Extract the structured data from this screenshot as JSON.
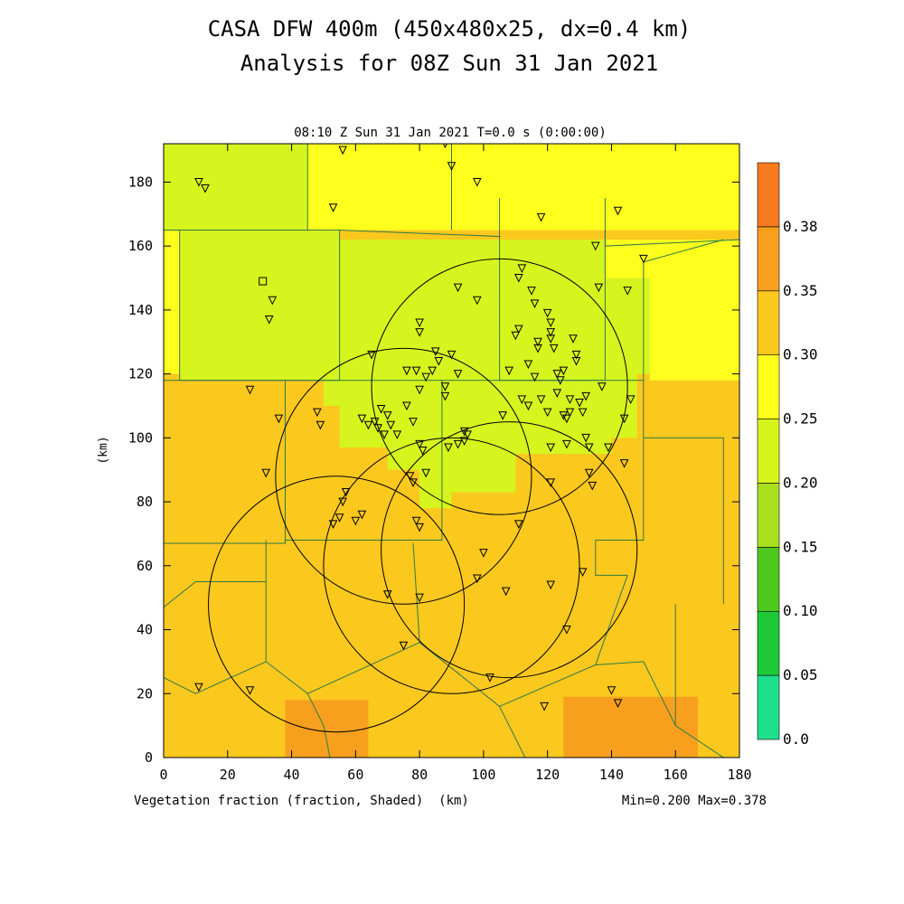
{
  "chart_data": {
    "type": "heatmap",
    "title": "CASA DFW 400m (450x480x25, dx=0.4 km)",
    "subtitle": "Analysis for 08Z Sun 31 Jan 2021",
    "time_label": "08:10 Z Sun 31 Jan 2021    T=0.0 s (0:00:00)",
    "variable_label": "Vegetation fraction (fraction, Shaded)  (km)",
    "minmax_label": "Min=0.200 Max=0.378",
    "xlabel": "(km)",
    "ylabel": "(km)",
    "xlim": [
      0,
      180
    ],
    "ylim": [
      0,
      192
    ],
    "x_ticks": [
      0,
      20,
      40,
      60,
      80,
      100,
      120,
      140,
      160,
      180
    ],
    "y_ticks": [
      0,
      20,
      40,
      60,
      80,
      100,
      120,
      140,
      160,
      180
    ],
    "colorbar": {
      "levels": [
        "0.0",
        "0.05",
        "0.10",
        "0.15",
        "0.20",
        "0.25",
        "0.30",
        "0.35",
        "0.38"
      ],
      "colors": [
        "#1ee08c",
        "#1ec837",
        "#4ec81e",
        "#a8e01e",
        "#d6f51e",
        "#ffff1e",
        "#fbc81e",
        "#f8a01e",
        "#f87a1e"
      ]
    },
    "fields": {
      "base_value": 0.3,
      "regions": [
        {
          "value": 0.26,
          "poly": [
            [
              0,
              192
            ],
            [
              180,
              192
            ],
            [
              180,
              165
            ],
            [
              0,
              165
            ]
          ]
        },
        {
          "value": 0.24,
          "poly": [
            [
              0,
              192
            ],
            [
              45,
              192
            ],
            [
              45,
              165
            ],
            [
              0,
              165
            ]
          ]
        },
        {
          "value": 0.27,
          "poly": [
            [
              0,
              165
            ],
            [
              5,
              165
            ],
            [
              5,
              120
            ],
            [
              0,
              120
            ]
          ]
        },
        {
          "value": 0.24,
          "poly": [
            [
              5,
              165
            ],
            [
              55,
              165
            ],
            [
              55,
              118
            ],
            [
              5,
              118
            ]
          ]
        },
        {
          "value": 0.24,
          "poly": [
            [
              55,
              162
            ],
            [
              138,
              162
            ],
            [
              138,
              150
            ],
            [
              152,
              150
            ],
            [
              152,
              120
            ],
            [
              148,
              120
            ],
            [
              148,
              100
            ],
            [
              140,
              100
            ],
            [
              140,
              95
            ],
            [
              110,
              95
            ],
            [
              110,
              83
            ],
            [
              90,
              83
            ],
            [
              90,
              78
            ],
            [
              80,
              78
            ],
            [
              80,
              90
            ],
            [
              70,
              90
            ],
            [
              70,
              97
            ],
            [
              55,
              97
            ],
            [
              55,
              110
            ],
            [
              50,
              110
            ],
            [
              50,
              118
            ],
            [
              55,
              118
            ]
          ]
        },
        {
          "value": 0.27,
          "poly": [
            [
              138,
              162
            ],
            [
              180,
              162
            ],
            [
              180,
              118
            ],
            [
              152,
              118
            ],
            [
              152,
              150
            ],
            [
              138,
              150
            ]
          ]
        },
        {
          "value": 0.31,
          "poly": [
            [
              0,
              68
            ],
            [
              38,
              68
            ],
            [
              38,
              70
            ],
            [
              45,
              70
            ],
            [
              45,
              25
            ],
            [
              30,
              25
            ],
            [
              30,
              15
            ],
            [
              0,
              15
            ]
          ]
        },
        {
          "value": 0.32,
          "poly": [
            [
              30,
              68
            ],
            [
              78,
              68
            ],
            [
              78,
              36
            ],
            [
              90,
              36
            ],
            [
              90,
              20
            ],
            [
              45,
              20
            ],
            [
              45,
              30
            ],
            [
              30,
              30
            ]
          ]
        },
        {
          "value": 0.31,
          "poly": [
            [
              78,
              68
            ],
            [
              135,
              68
            ],
            [
              135,
              30
            ],
            [
              100,
              30
            ],
            [
              100,
              50
            ],
            [
              90,
              50
            ],
            [
              90,
              36
            ],
            [
              78,
              36
            ]
          ]
        },
        {
          "value": 0.32,
          "poly": [
            [
              150,
              100
            ],
            [
              180,
              100
            ],
            [
              180,
              48
            ],
            [
              160,
              48
            ],
            [
              160,
              55
            ],
            [
              150,
              55
            ]
          ]
        },
        {
          "value": 0.36,
          "poly": [
            [
              38,
              0
            ],
            [
              64,
              0
            ],
            [
              64,
              18
            ],
            [
              38,
              18
            ]
          ]
        },
        {
          "value": 0.36,
          "poly": [
            [
              125,
              0
            ],
            [
              167,
              0
            ],
            [
              167,
              19
            ],
            [
              125,
              19
            ]
          ]
        },
        {
          "value": 0.32,
          "poly": [
            [
              0,
              15
            ],
            [
              30,
              15
            ],
            [
              30,
              0
            ],
            [
              0,
              0
            ]
          ]
        }
      ]
    },
    "county_lines": [
      [
        [
          0,
          165
        ],
        [
          45,
          165
        ],
        [
          45,
          192
        ]
      ],
      [
        [
          45,
          165
        ],
        [
          55,
          165
        ],
        [
          55,
          118
        ],
        [
          5,
          118
        ],
        [
          5,
          165
        ]
      ],
      [
        [
          55,
          165
        ],
        [
          105,
          163
        ],
        [
          105,
          175
        ]
      ],
      [
        [
          90,
          192
        ],
        [
          90,
          165
        ]
      ],
      [
        [
          138,
          175
        ],
        [
          138,
          160
        ],
        [
          180,
          162
        ]
      ],
      [
        [
          105,
          163
        ],
        [
          105,
          118
        ],
        [
          138,
          118
        ],
        [
          138,
          165
        ]
      ],
      [
        [
          0,
          118
        ],
        [
          38,
          118
        ],
        [
          38,
          67
        ],
        [
          0,
          67
        ]
      ],
      [
        [
          38,
          118
        ],
        [
          87,
          118
        ],
        [
          87,
          68
        ],
        [
          38,
          68
        ]
      ],
      [
        [
          87,
          118
        ],
        [
          150,
          118
        ],
        [
          150,
          68
        ],
        [
          135,
          68
        ],
        [
          135,
          57
        ],
        [
          145,
          57
        ]
      ],
      [
        [
          150,
          100
        ],
        [
          175,
          100
        ],
        [
          175,
          48
        ]
      ],
      [
        [
          150,
          118
        ],
        [
          150,
          155
        ],
        [
          175,
          162
        ]
      ],
      [
        [
          0,
          47
        ],
        [
          10,
          55
        ],
        [
          32,
          55
        ],
        [
          32,
          68
        ]
      ],
      [
        [
          32,
          55
        ],
        [
          32,
          30
        ],
        [
          10,
          20
        ]
      ],
      [
        [
          32,
          30
        ],
        [
          45,
          20
        ],
        [
          80,
          36
        ],
        [
          78,
          67
        ]
      ],
      [
        [
          80,
          36
        ],
        [
          105,
          16
        ],
        [
          135,
          29
        ],
        [
          145,
          57
        ]
      ],
      [
        [
          0,
          0
        ],
        [
          0,
          25
        ],
        [
          10,
          20
        ]
      ],
      [
        [
          45,
          20
        ],
        [
          50,
          10
        ],
        [
          52,
          0
        ]
      ],
      [
        [
          105,
          16
        ],
        [
          113,
          0
        ]
      ],
      [
        [
          135,
          29
        ],
        [
          150,
          30
        ],
        [
          160,
          10
        ],
        [
          175,
          0
        ]
      ],
      [
        [
          160,
          48
        ],
        [
          160,
          10
        ]
      ],
      [
        [
          38,
          68
        ],
        [
          87,
          68
        ]
      ]
    ],
    "range_rings": [
      {
        "cx": 75,
        "cy": 88,
        "r": 40
      },
      {
        "cx": 54,
        "cy": 48,
        "r": 40
      },
      {
        "cx": 90,
        "cy": 60,
        "r": 40
      },
      {
        "cx": 105,
        "cy": 116,
        "r": 40
      },
      {
        "cx": 108,
        "cy": 65,
        "r": 40
      }
    ],
    "stations_triangle": [
      [
        11,
        180
      ],
      [
        13,
        178
      ],
      [
        56,
        190
      ],
      [
        53,
        172
      ],
      [
        88,
        192
      ],
      [
        90,
        185
      ],
      [
        98,
        180
      ],
      [
        118,
        169
      ],
      [
        142,
        171
      ],
      [
        150,
        156
      ],
      [
        34,
        143
      ],
      [
        33,
        137
      ],
      [
        27,
        115
      ],
      [
        36,
        106
      ],
      [
        32,
        89
      ],
      [
        48,
        108
      ],
      [
        49,
        104
      ],
      [
        62,
        106
      ],
      [
        64,
        104
      ],
      [
        66,
        105
      ],
      [
        67,
        103
      ],
      [
        68,
        109
      ],
      [
        70,
        107
      ],
      [
        71,
        104
      ],
      [
        73,
        101
      ],
      [
        69,
        101
      ],
      [
        65,
        126
      ],
      [
        76,
        121
      ],
      [
        79,
        121
      ],
      [
        80,
        115
      ],
      [
        82,
        119
      ],
      [
        84,
        121
      ],
      [
        85,
        127
      ],
      [
        86,
        124
      ],
      [
        88,
        116
      ],
      [
        88,
        113
      ],
      [
        90,
        126
      ],
      [
        92,
        120
      ],
      [
        92,
        147
      ],
      [
        98,
        143
      ],
      [
        80,
        136
      ],
      [
        80,
        133
      ],
      [
        76,
        110
      ],
      [
        78,
        105
      ],
      [
        80,
        98
      ],
      [
        81,
        96
      ],
      [
        82,
        89
      ],
      [
        78,
        86
      ],
      [
        77,
        88
      ],
      [
        89,
        97
      ],
      [
        92,
        98
      ],
      [
        95,
        101
      ],
      [
        94,
        102
      ],
      [
        94,
        99
      ],
      [
        106,
        107
      ],
      [
        108,
        121
      ],
      [
        110,
        132
      ],
      [
        111,
        134
      ],
      [
        111,
        150
      ],
      [
        112,
        153
      ],
      [
        114,
        123
      ],
      [
        115,
        146
      ],
      [
        116,
        142
      ],
      [
        117,
        130
      ],
      [
        117,
        128
      ],
      [
        120,
        139
      ],
      [
        121,
        136
      ],
      [
        121,
        133
      ],
      [
        121,
        131
      ],
      [
        122,
        128
      ],
      [
        123,
        120
      ],
      [
        124,
        118
      ],
      [
        125,
        121
      ],
      [
        123,
        114
      ],
      [
        125,
        107
      ],
      [
        126,
        106
      ],
      [
        127,
        108
      ],
      [
        127,
        112
      ],
      [
        128,
        131
      ],
      [
        129,
        124
      ],
      [
        129,
        126
      ],
      [
        130,
        111
      ],
      [
        131,
        108
      ],
      [
        132,
        113
      ],
      [
        132,
        100
      ],
      [
        133,
        97
      ],
      [
        133,
        89
      ],
      [
        134,
        85
      ],
      [
        136,
        147
      ],
      [
        135,
        160
      ],
      [
        137,
        116
      ],
      [
        139,
        97
      ],
      [
        144,
        92
      ],
      [
        144,
        106
      ],
      [
        146,
        112
      ],
      [
        145,
        146
      ],
      [
        140,
        21
      ],
      [
        142,
        17
      ],
      [
        11,
        22
      ],
      [
        27,
        21
      ],
      [
        57,
        83
      ],
      [
        56,
        80
      ],
      [
        53,
        73
      ],
      [
        55,
        75
      ],
      [
        60,
        74
      ],
      [
        62,
        76
      ],
      [
        70,
        51
      ],
      [
        79,
        74
      ],
      [
        80,
        72
      ],
      [
        80,
        50
      ],
      [
        75,
        35
      ],
      [
        98,
        56
      ],
      [
        102,
        25
      ],
      [
        100,
        64
      ],
      [
        111,
        73
      ],
      [
        107,
        52
      ],
      [
        119,
        16
      ],
      [
        121,
        54
      ],
      [
        126,
        40
      ],
      [
        131,
        58
      ],
      [
        121,
        86
      ],
      [
        126,
        98
      ],
      [
        121,
        97
      ],
      [
        116,
        119
      ],
      [
        112,
        112
      ],
      [
        114,
        110
      ],
      [
        118,
        112
      ],
      [
        120,
        108
      ]
    ],
    "stations_square": [
      [
        31,
        149
      ]
    ]
  }
}
